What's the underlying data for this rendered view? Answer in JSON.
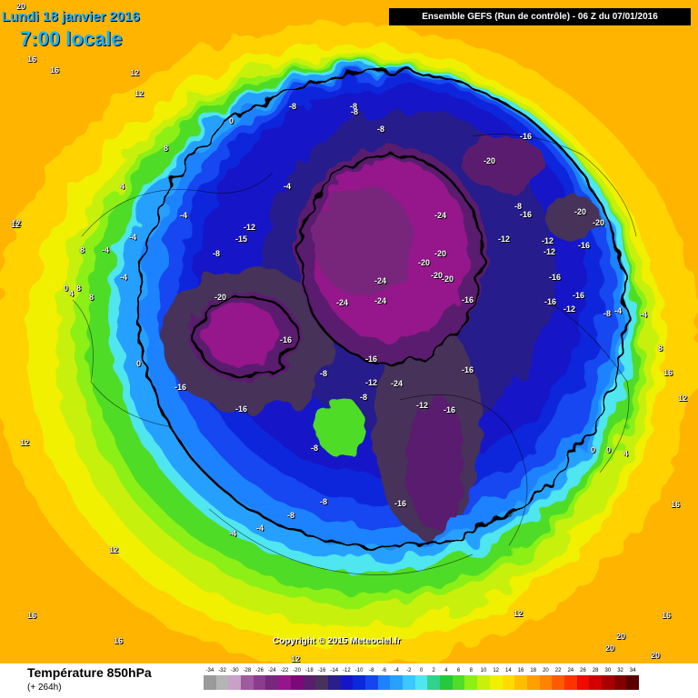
{
  "header": {
    "date": "Lundi 18 janvier 2016",
    "time": "7:00 locale",
    "run_info": "Ensemble GEFS  (Run de contrôle)  -  06 Z du 07/01/2016"
  },
  "copyright": "Copyright © 2015 Meteociel.fr",
  "footer": {
    "title": "Température 850hPa",
    "subtitle": "(+ 264h)"
  },
  "scale": [
    {
      "label": "-34",
      "color": "#9a9a9a"
    },
    {
      "label": "-32",
      "color": "#b4b4b4"
    },
    {
      "label": "-30",
      "color": "#c8a0c8"
    },
    {
      "label": "-28",
      "color": "#a05aa0"
    },
    {
      "label": "-26",
      "color": "#8c3c8c"
    },
    {
      "label": "-24",
      "color": "#78287c"
    },
    {
      "label": "-22",
      "color": "#96148c"
    },
    {
      "label": "-20",
      "color": "#7a0a7a"
    },
    {
      "label": "-18",
      "color": "#5a1e6e"
    },
    {
      "label": "-16",
      "color": "#46325a"
    },
    {
      "label": "-14",
      "color": "#281e8c"
    },
    {
      "label": "-12",
      "color": "#1414c8"
    },
    {
      "label": "-10",
      "color": "#0a28dc"
    },
    {
      "label": "-8",
      "color": "#1446f0"
    },
    {
      "label": "-6",
      "color": "#1e82ff"
    },
    {
      "label": "-4",
      "color": "#28a0ff"
    },
    {
      "label": "-2",
      "color": "#3cc8ff"
    },
    {
      "label": "0",
      "color": "#50e6f0"
    },
    {
      "label": "2",
      "color": "#32d28c"
    },
    {
      "label": "4",
      "color": "#28c83c"
    },
    {
      "label": "6",
      "color": "#50dc28"
    },
    {
      "label": "8",
      "color": "#8cf014"
    },
    {
      "label": "10",
      "color": "#c8f00a"
    },
    {
      "label": "12",
      "color": "#f0f000"
    },
    {
      "label": "14",
      "color": "#ffdc00"
    },
    {
      "label": "16",
      "color": "#ffbe00"
    },
    {
      "label": "18",
      "color": "#ffa000"
    },
    {
      "label": "20",
      "color": "#ff8200"
    },
    {
      "label": "22",
      "color": "#ff5a00"
    },
    {
      "label": "24",
      "color": "#ff3200"
    },
    {
      "label": "26",
      "color": "#f00a00"
    },
    {
      "label": "28",
      "color": "#d20000"
    },
    {
      "label": "30",
      "color": "#aa0000"
    },
    {
      "label": "32",
      "color": "#820000"
    },
    {
      "label": "34",
      "color": "#5a0000"
    }
  ],
  "contour_labels": [
    {
      "t": "20"
    },
    {
      "t": "16"
    },
    {
      "t": "16"
    },
    {
      "t": "12"
    },
    {
      "t": "12"
    },
    {
      "t": "12"
    },
    {
      "t": "0"
    },
    {
      "t": "-8"
    },
    {
      "t": "-8"
    },
    {
      "t": "-8"
    },
    {
      "t": "-8"
    },
    {
      "t": "-16"
    },
    {
      "t": "-20"
    },
    {
      "t": "-24"
    },
    {
      "t": "-24"
    },
    {
      "t": "-24"
    },
    {
      "t": "-24"
    },
    {
      "t": "-20"
    },
    {
      "t": "-20"
    },
    {
      "t": "-20"
    },
    {
      "t": "-20"
    },
    {
      "t": "-20"
    },
    {
      "t": "-16"
    },
    {
      "t": "-16"
    },
    {
      "t": "-16"
    },
    {
      "t": "-16"
    },
    {
      "t": "-12"
    },
    {
      "t": "-12"
    },
    {
      "t": "-12"
    },
    {
      "t": "-15"
    },
    {
      "t": "-16"
    },
    {
      "t": "-20"
    },
    {
      "t": "-20"
    },
    {
      "t": "-16"
    },
    {
      "t": "-16"
    },
    {
      "t": "-8"
    },
    {
      "t": "-8"
    },
    {
      "t": "-4"
    },
    {
      "t": "-4"
    },
    {
      "t": "-4"
    },
    {
      "t": "-4"
    },
    {
      "t": "-4"
    },
    {
      "t": "0"
    },
    {
      "t": "0"
    },
    {
      "t": "4"
    },
    {
      "t": "4"
    },
    {
      "t": "8"
    },
    {
      "t": "8"
    },
    {
      "t": "8"
    },
    {
      "t": "8"
    },
    {
      "t": "12"
    },
    {
      "t": "12"
    },
    {
      "t": "12"
    },
    {
      "t": "12"
    },
    {
      "t": "12"
    },
    {
      "t": "16"
    },
    {
      "t": "16"
    },
    {
      "t": "16"
    },
    {
      "t": "16"
    },
    {
      "t": "-8"
    },
    {
      "t": "-8"
    },
    {
      "t": "-16"
    },
    {
      "t": "-4"
    },
    {
      "t": "-4"
    },
    {
      "t": "-12"
    },
    {
      "t": "-16"
    },
    {
      "t": "-16"
    },
    {
      "t": "-12"
    },
    {
      "t": "-8"
    },
    {
      "t": "-8"
    },
    {
      "t": "-12"
    },
    {
      "t": "-12"
    },
    {
      "t": "-16"
    },
    {
      "t": "-16"
    },
    {
      "t": "-8"
    },
    {
      "t": "-4"
    },
    {
      "t": "-4"
    },
    {
      "t": "8"
    },
    {
      "t": "4"
    },
    {
      "t": "0"
    },
    {
      "t": "0"
    },
    {
      "t": "12"
    },
    {
      "t": "16"
    },
    {
      "t": "20"
    },
    {
      "t": "20"
    },
    {
      "t": "20"
    },
    {
      "t": "-16"
    },
    {
      "t": "-8"
    },
    {
      "t": "-24"
    }
  ]
}
